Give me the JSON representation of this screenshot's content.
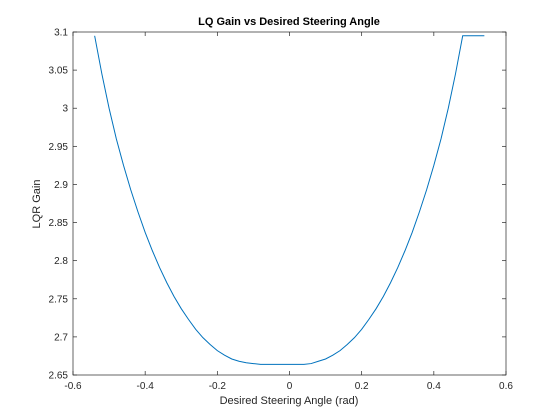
{
  "chart_data": {
    "type": "line",
    "title": "LQ Gain vs Desired Steering Angle",
    "xlabel": "Desired Steering Angle (rad)",
    "ylabel": "LQR Gain",
    "xlim": [
      -0.6,
      0.6
    ],
    "ylim": [
      2.65,
      3.1
    ],
    "xticks": [
      -0.6,
      -0.4,
      -0.2,
      0,
      0.2,
      0.4,
      0.6
    ],
    "xtick_labels": [
      "-0.6",
      "-0.4",
      "-0.2",
      "0",
      "0.2",
      "0.4",
      "0.6"
    ],
    "yticks": [
      2.65,
      2.7,
      2.75,
      2.8,
      2.85,
      2.9,
      2.95,
      3.0,
      3.05,
      3.1
    ],
    "ytick_labels": [
      "2.65",
      "2.7",
      "2.75",
      "2.8",
      "2.85",
      "2.9",
      "2.95",
      "3",
      "3.05",
      "3.1"
    ],
    "grid": false,
    "series": [
      {
        "color": "#0072BD",
        "x": [
          -0.54,
          -0.52,
          -0.5,
          -0.48,
          -0.46,
          -0.44,
          -0.42,
          -0.4,
          -0.38,
          -0.36,
          -0.34,
          -0.32,
          -0.3,
          -0.28,
          -0.26,
          -0.24,
          -0.22,
          -0.2,
          -0.18,
          -0.16,
          -0.14,
          -0.12,
          -0.1,
          -0.08,
          -0.06,
          -0.04,
          -0.02,
          0.0,
          0.02,
          0.04,
          0.06,
          0.08,
          0.1,
          0.12,
          0.14,
          0.16,
          0.18,
          0.2,
          0.22,
          0.24,
          0.26,
          0.28,
          0.3,
          0.32,
          0.34,
          0.36,
          0.38,
          0.4,
          0.42,
          0.44,
          0.46,
          0.48,
          0.5,
          0.52,
          0.54
        ],
        "y": [
          3.095,
          3.045,
          3.0,
          2.96,
          2.925,
          2.893,
          2.864,
          2.837,
          2.813,
          2.791,
          2.771,
          2.753,
          2.737,
          2.723,
          2.71,
          2.699,
          2.69,
          2.682,
          2.676,
          2.671,
          2.668,
          2.666,
          2.665,
          2.664,
          2.664,
          2.664,
          2.664,
          2.664,
          2.664,
          2.664,
          2.665,
          2.668,
          2.671,
          2.676,
          2.682,
          2.69,
          2.699,
          2.71,
          2.723,
          2.737,
          2.753,
          2.771,
          2.791,
          2.813,
          2.837,
          2.864,
          2.893,
          2.925,
          2.96,
          3.0,
          3.045,
          3.095,
          3.095,
          3.095,
          3.095
        ]
      }
    ]
  }
}
